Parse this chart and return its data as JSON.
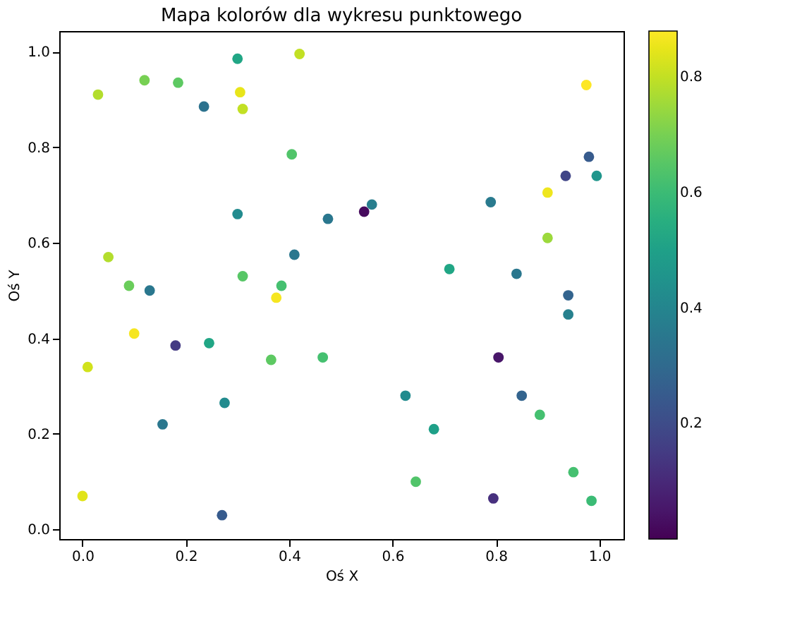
{
  "chart_data": {
    "type": "scatter",
    "title": "Mapa kolorów dla wykresu punktowego",
    "xlabel": "Oś X",
    "ylabel": "Oś Y",
    "x": [
      0.0,
      0.01,
      0.03,
      0.05,
      0.09,
      0.1,
      0.12,
      0.13,
      0.155,
      0.18,
      0.185,
      0.235,
      0.245,
      0.27,
      0.275,
      0.3,
      0.3,
      0.305,
      0.31,
      0.31,
      0.365,
      0.375,
      0.385,
      0.405,
      0.41,
      0.42,
      0.465,
      0.475,
      0.545,
      0.56,
      0.625,
      0.645,
      0.68,
      0.71,
      0.79,
      0.795,
      0.805,
      0.84,
      0.85,
      0.885,
      0.9,
      0.9,
      0.935,
      0.94,
      0.94,
      0.95,
      0.975,
      0.98,
      0.985,
      0.995
    ],
    "values": [
      0.07,
      0.34,
      0.91,
      0.57,
      0.51,
      0.41,
      0.94,
      0.5,
      0.22,
      0.385,
      0.935,
      0.885,
      0.39,
      0.03,
      0.265,
      0.985,
      0.66,
      0.915,
      0.88,
      0.53,
      0.355,
      0.485,
      0.51,
      0.785,
      0.575,
      0.995,
      0.36,
      0.65,
      0.665,
      0.68,
      0.28,
      0.1,
      0.21,
      0.545,
      0.685,
      0.065,
      0.36,
      0.535,
      0.28,
      0.24,
      0.705,
      0.61,
      0.74,
      0.49,
      0.45,
      0.12,
      0.93,
      0.78,
      0.06,
      0.74
    ],
    "cvalues": [
      0.84,
      0.82,
      0.78,
      0.78,
      0.68,
      0.87,
      0.7,
      0.35,
      0.35,
      0.15,
      0.66,
      0.33,
      0.52,
      0.25,
      0.42,
      0.52,
      0.42,
      0.85,
      0.8,
      0.65,
      0.66,
      0.87,
      0.62,
      0.64,
      0.35,
      0.8,
      0.62,
      0.35,
      0.02,
      0.37,
      0.42,
      0.64,
      0.5,
      0.52,
      0.36,
      0.12,
      0.05,
      0.35,
      0.28,
      0.62,
      0.86,
      0.75,
      0.18,
      0.28,
      0.38,
      0.62,
      0.88,
      0.25,
      0.6,
      0.46
    ],
    "xlim": [
      -0.045,
      1.047
    ],
    "ylim": [
      -0.02,
      1.043
    ],
    "xticks": [
      {
        "value": 0,
        "label": "0.0"
      },
      0.2,
      0.4,
      0.6,
      0.8,
      {
        "value": 1,
        "label": "1.0"
      }
    ],
    "yticks": [
      {
        "value": 0,
        "label": "0.0"
      },
      0.2,
      0.4,
      0.6,
      0.8,
      {
        "value": 1,
        "label": "1.0"
      }
    ],
    "clim": [
      0.0,
      0.88
    ],
    "cticks": [
      0.2,
      0.4,
      0.6,
      0.8
    ],
    "marker": "circle",
    "grid": false
  }
}
